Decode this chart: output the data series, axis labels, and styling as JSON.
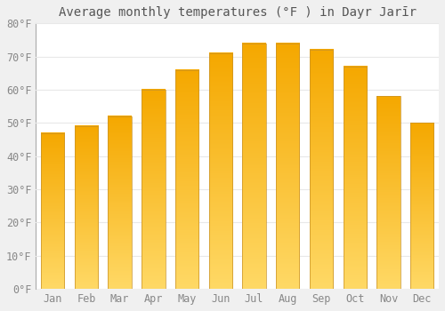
{
  "title": "Average monthly temperatures (°F ) in Dayr Jarīr",
  "months": [
    "Jan",
    "Feb",
    "Mar",
    "Apr",
    "May",
    "Jun",
    "Jul",
    "Aug",
    "Sep",
    "Oct",
    "Nov",
    "Dec"
  ],
  "values": [
    47,
    49,
    52,
    60,
    66,
    71,
    74,
    74,
    72,
    67,
    58,
    50
  ],
  "bar_color_top": "#F5A800",
  "bar_color_bottom": "#FFD966",
  "bar_edge_color": "#C8922A",
  "ylim": [
    0,
    80
  ],
  "yticks": [
    0,
    10,
    20,
    30,
    40,
    50,
    60,
    70,
    80
  ],
  "ytick_labels": [
    "0°F",
    "10°F",
    "20°F",
    "30°F",
    "40°F",
    "50°F",
    "60°F",
    "70°F",
    "80°F"
  ],
  "bg_color": "#f0f0f0",
  "plot_bg_color": "#ffffff",
  "grid_color": "#e8e8e8",
  "title_fontsize": 10,
  "tick_fontsize": 8.5,
  "bar_width": 0.7
}
